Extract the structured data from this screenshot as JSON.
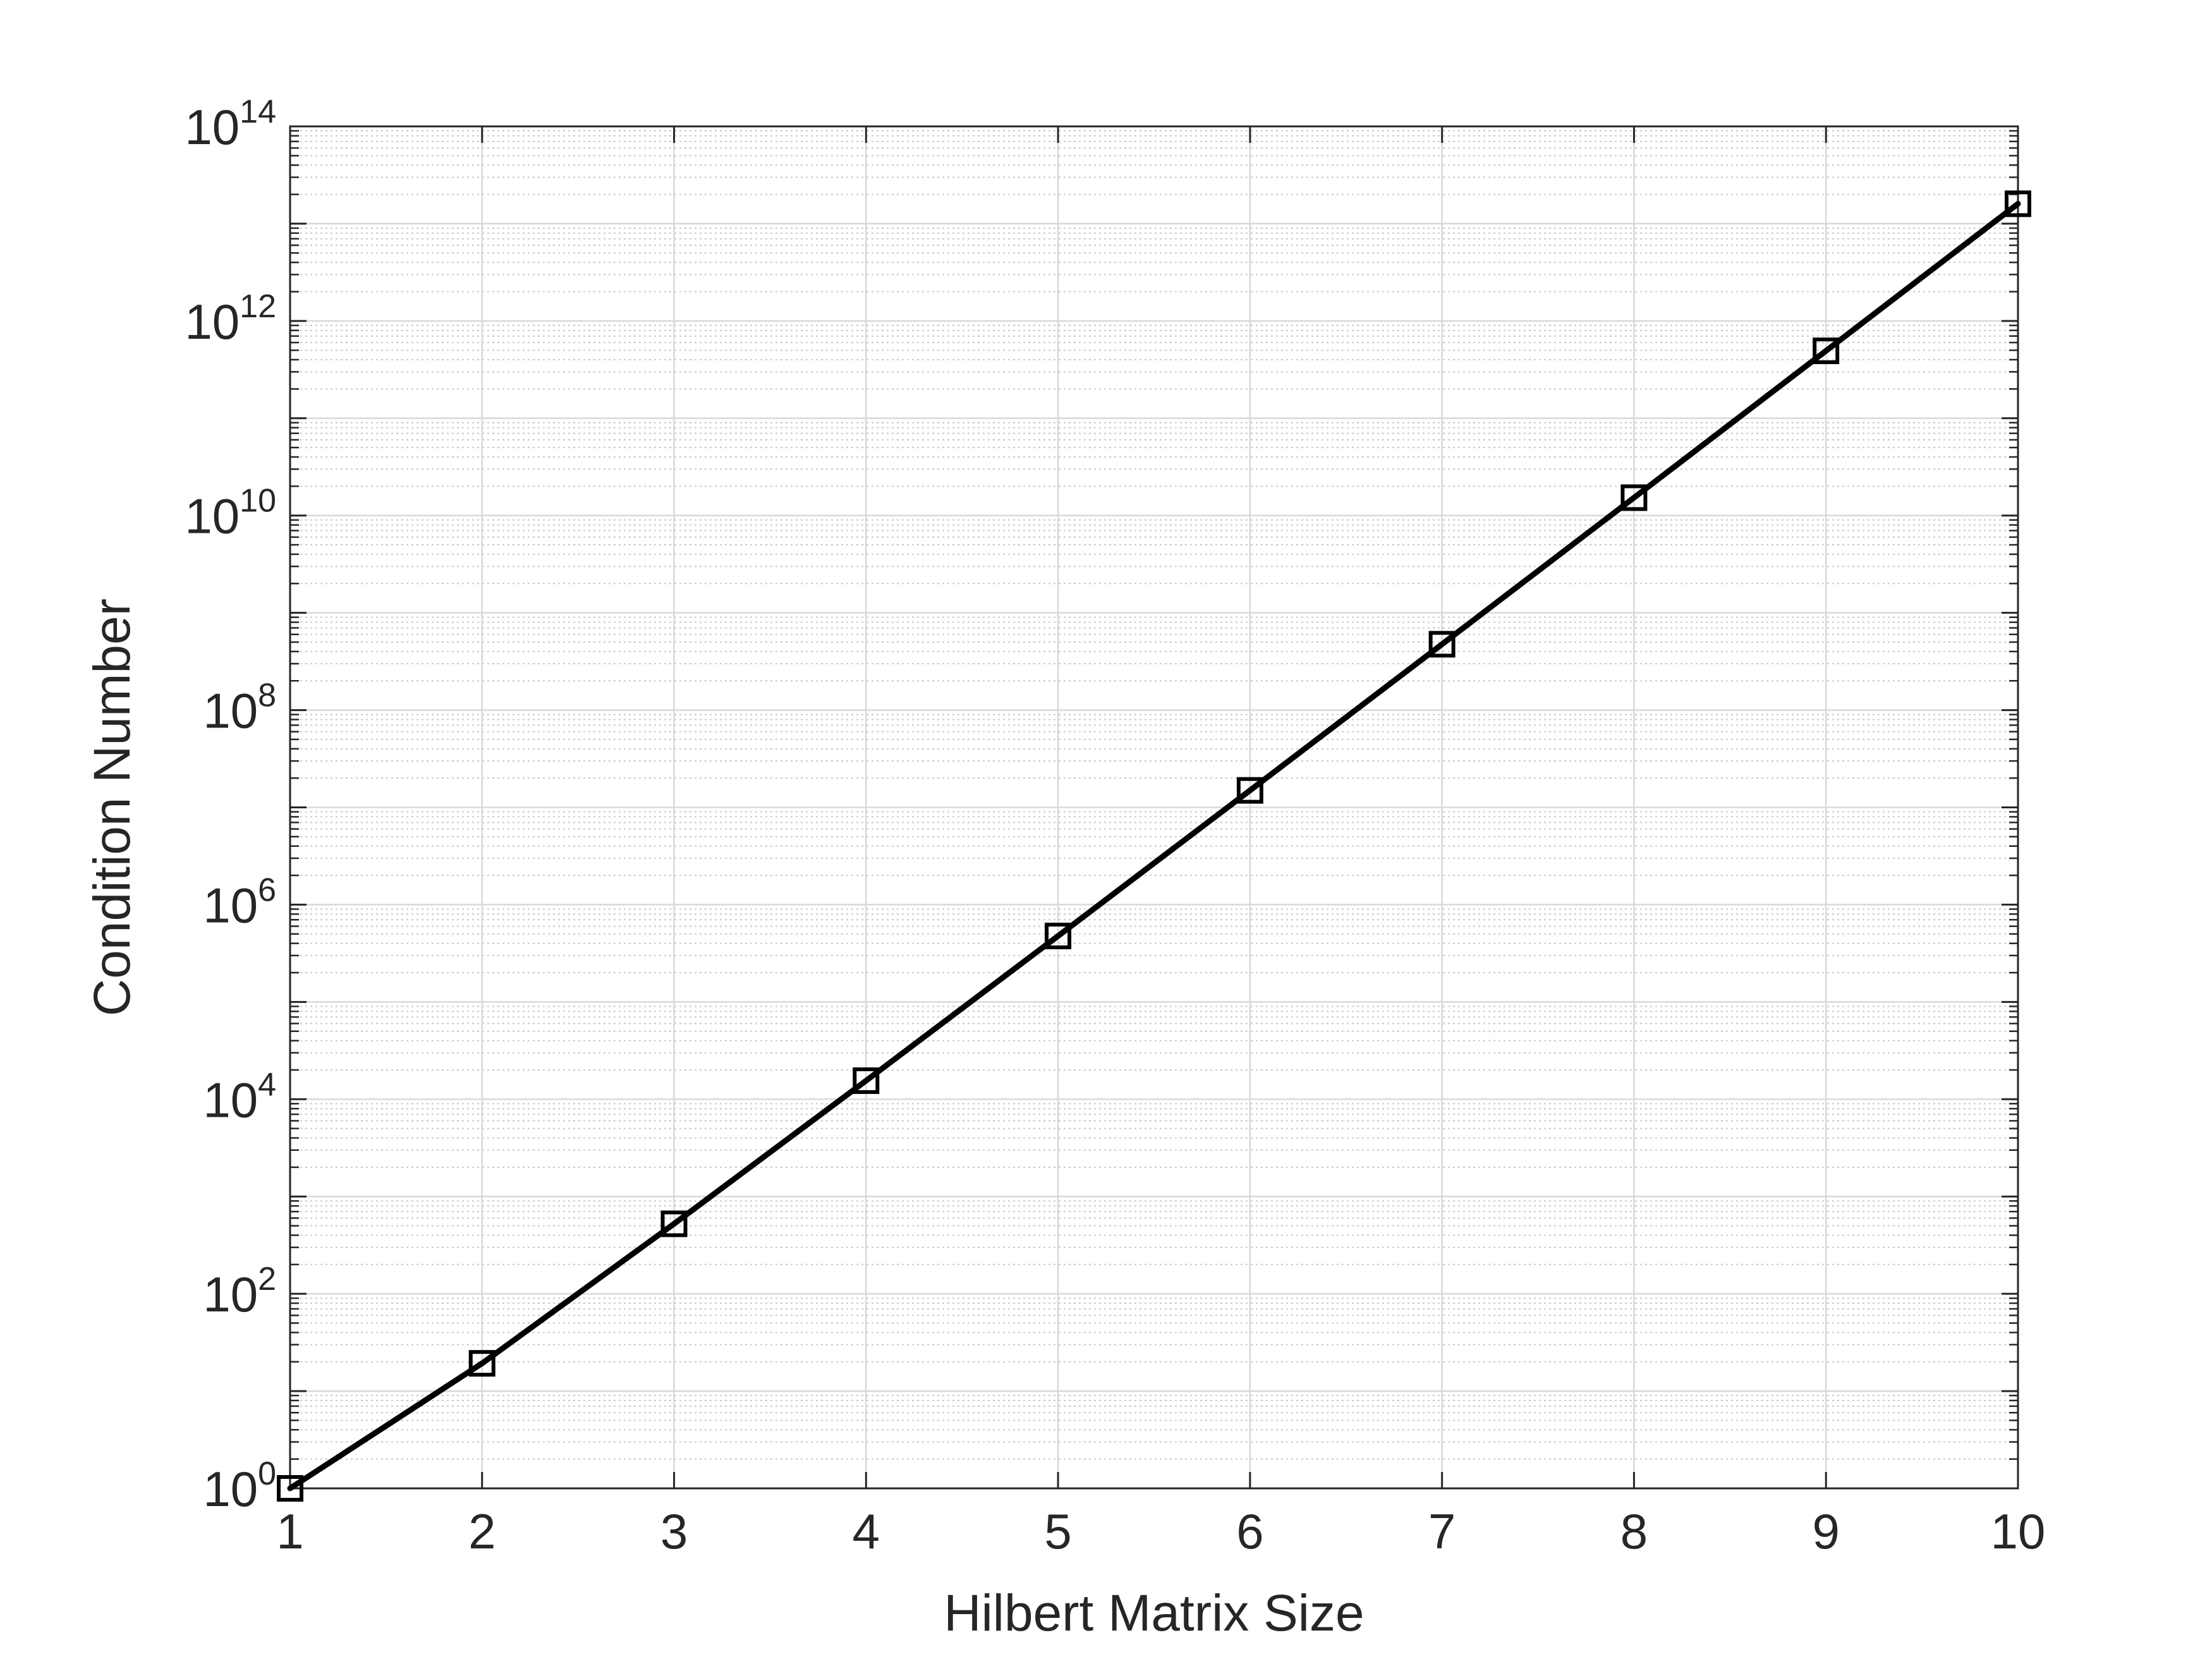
{
  "chart_data": {
    "type": "line",
    "xlabel": "Hilbert Matrix Size",
    "ylabel": "Condition Number",
    "xlim": [
      1,
      10
    ],
    "ylim": [
      1,
      100000000000000.0
    ],
    "yscale": "log",
    "grid": true,
    "minor_grid": true,
    "xticks": [
      "1",
      "2",
      "3",
      "4",
      "5",
      "6",
      "7",
      "8",
      "9",
      "10"
    ],
    "yticks": [
      {
        "base": "10",
        "exp": "0"
      },
      {
        "base": "10",
        "exp": "2"
      },
      {
        "base": "10",
        "exp": "4"
      },
      {
        "base": "10",
        "exp": "6"
      },
      {
        "base": "10",
        "exp": "8"
      },
      {
        "base": "10",
        "exp": "10"
      },
      {
        "base": "10",
        "exp": "12"
      },
      {
        "base": "10",
        "exp": "14"
      }
    ],
    "series": [
      {
        "marker": "square",
        "color": "#000000",
        "x": [
          1,
          2,
          3,
          4,
          5,
          6,
          7,
          8,
          9,
          10
        ],
        "y": [
          1,
          19.28,
          524.06,
          15513.7,
          476607,
          14951100,
          475367000,
          15257600000,
          493154000000,
          16024900000000
        ]
      }
    ]
  }
}
